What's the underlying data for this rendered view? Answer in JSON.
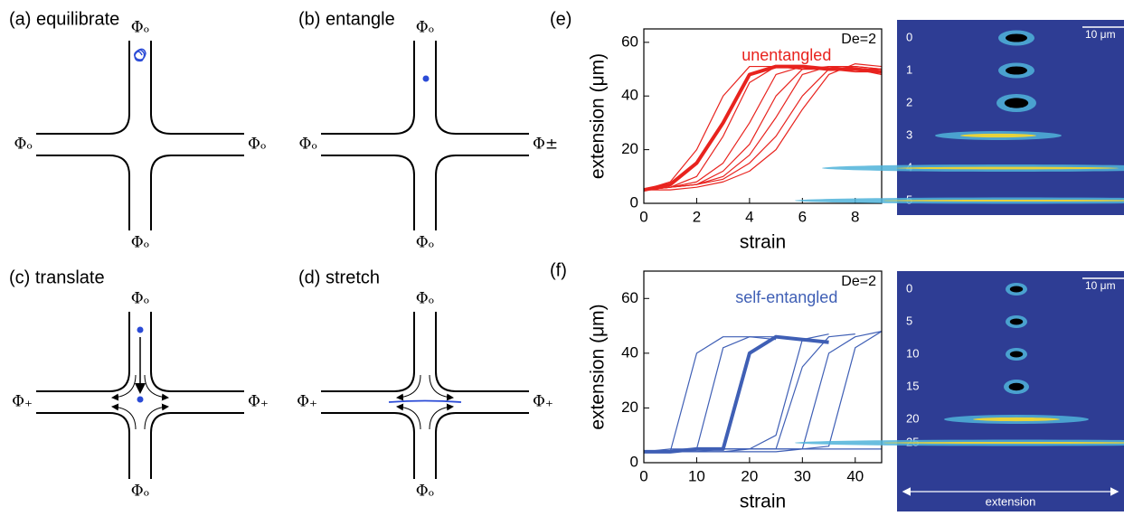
{
  "diagrams": [
    {
      "label": "(a) equilibrate",
      "top": "Φₒ",
      "bottom": "Φₒ",
      "left": "Φₒ",
      "right": "Φₒ"
    },
    {
      "label": "(b) entangle",
      "top": "Φₒ",
      "bottom": "Φₒ",
      "left": "Φₒ",
      "right": "Φ±"
    },
    {
      "label": "(c) translate",
      "top": "Φₒ",
      "bottom": "Φₒ",
      "left": "Φ₊",
      "right": "Φ₊"
    },
    {
      "label": "(d) stretch",
      "top": "Φₒ",
      "bottom": "Φₒ",
      "left": "Φ₊",
      "right": "Φ₊"
    }
  ],
  "chart_data": [
    {
      "type": "line",
      "panel": "(e)",
      "annotation": "De=2",
      "label": "unentangled",
      "label_color": "#e8231e",
      "xlabel": "strain",
      "ylabel": "extension (μm)",
      "xlim": [
        0,
        9
      ],
      "xticks": [
        0,
        2,
        4,
        6,
        8
      ],
      "ylim": [
        0,
        65
      ],
      "yticks": [
        0,
        20,
        40,
        60
      ],
      "x": [
        0,
        1,
        2,
        3,
        4,
        5,
        6,
        7,
        8,
        9
      ],
      "series": [
        {
          "color": "#e8231e",
          "linewidth": 4,
          "values": [
            5,
            7,
            15,
            30,
            48,
            51,
            51,
            50,
            50,
            49
          ]
        },
        {
          "color": "#e8231e",
          "linewidth": 1.2,
          "values": [
            5,
            8,
            20,
            40,
            51,
            51,
            50,
            50,
            50,
            49
          ]
        },
        {
          "color": "#e8231e",
          "linewidth": 1.2,
          "values": [
            5,
            6,
            10,
            25,
            45,
            51,
            50,
            50,
            49,
            49
          ]
        },
        {
          "color": "#e8231e",
          "linewidth": 1.2,
          "values": [
            5,
            6,
            8,
            15,
            30,
            48,
            51,
            50,
            50,
            48
          ]
        },
        {
          "color": "#e8231e",
          "linewidth": 1.2,
          "values": [
            5,
            6,
            7,
            12,
            22,
            40,
            50,
            51,
            50,
            50
          ]
        },
        {
          "color": "#e8231e",
          "linewidth": 1.2,
          "values": [
            5,
            6,
            7,
            10,
            18,
            32,
            48,
            51,
            51,
            50
          ]
        },
        {
          "color": "#e8231e",
          "linewidth": 1.2,
          "values": [
            5,
            6,
            7,
            9,
            15,
            25,
            40,
            50,
            51,
            50
          ]
        },
        {
          "color": "#e8231e",
          "linewidth": 1.2,
          "values": [
            5,
            5,
            6,
            8,
            12,
            20,
            35,
            48,
            52,
            51
          ]
        }
      ]
    },
    {
      "type": "line",
      "panel": "(f)",
      "annotation": "De=2",
      "label": "self-entangled",
      "label_color": "#3f5fb5",
      "xlabel": "strain",
      "ylabel": "extension (μm)",
      "xlim": [
        0,
        45
      ],
      "xticks": [
        0,
        10,
        20,
        30,
        40
      ],
      "ylim": [
        0,
        70
      ],
      "yticks": [
        0,
        20,
        40,
        60
      ],
      "x": [
        0,
        5,
        10,
        15,
        20,
        25,
        30,
        35,
        40,
        45
      ],
      "series": [
        {
          "color": "#3f5fb5",
          "linewidth": 4,
          "values": [
            4,
            4,
            5,
            5,
            40,
            46,
            45,
            44,
            null,
            null
          ]
        },
        {
          "color": "#3f5fb5",
          "linewidth": 1.2,
          "values": [
            4,
            4,
            40,
            46,
            46,
            45,
            null,
            null,
            null,
            null
          ]
        },
        {
          "color": "#3f5fb5",
          "linewidth": 1.2,
          "values": [
            4,
            5,
            5,
            42,
            46,
            46,
            45,
            null,
            null,
            null
          ]
        },
        {
          "color": "#3f5fb5",
          "linewidth": 1.2,
          "values": [
            4,
            4,
            5,
            5,
            5,
            10,
            45,
            47,
            null,
            null
          ]
        },
        {
          "color": "#3f5fb5",
          "linewidth": 1.2,
          "values": [
            4,
            4,
            4,
            5,
            5,
            5,
            35,
            46,
            47,
            null
          ]
        },
        {
          "color": "#3f5fb5",
          "linewidth": 1.2,
          "values": [
            4,
            4,
            4,
            4,
            5,
            5,
            5,
            40,
            46,
            48
          ]
        },
        {
          "color": "#3f5fb5",
          "linewidth": 1.2,
          "values": [
            4,
            4,
            5,
            5,
            5,
            5,
            5,
            6,
            42,
            48
          ]
        },
        {
          "color": "#3f5fb5",
          "linewidth": 1.2,
          "values": [
            4,
            4,
            4,
            4,
            4,
            4,
            5,
            5,
            5,
            5
          ]
        }
      ]
    }
  ],
  "images": [
    {
      "scale": "10 μm",
      "rows": [
        "0",
        "1",
        "2",
        "3",
        "4",
        "5"
      ]
    },
    {
      "scale": "10 μm",
      "rows": [
        "0",
        "5",
        "10",
        "15",
        "20",
        "25"
      ],
      "axis_label": "extension"
    }
  ]
}
